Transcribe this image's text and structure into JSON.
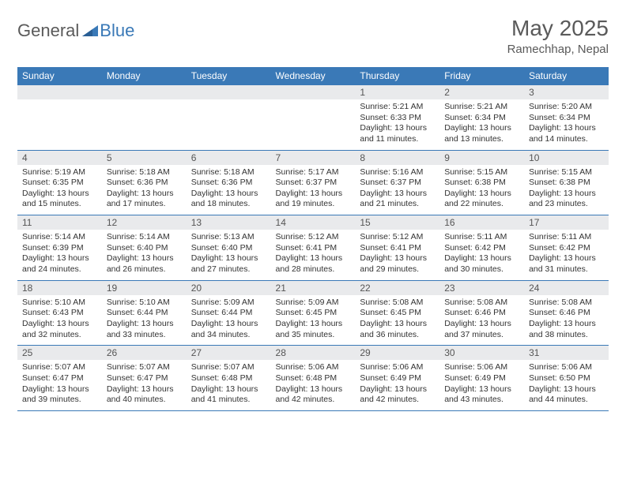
{
  "brand": {
    "word1": "General",
    "word2": "Blue"
  },
  "title": "May 2025",
  "location": "Ramechhap, Nepal",
  "colors": {
    "header_bg": "#3a79b7",
    "header_text": "#ffffff",
    "daynum_bg": "#e9eaec",
    "border": "#3a79b7",
    "page_bg": "#ffffff",
    "text": "#333333"
  },
  "weekdays": [
    "Sunday",
    "Monday",
    "Tuesday",
    "Wednesday",
    "Thursday",
    "Friday",
    "Saturday"
  ],
  "weeks": [
    [
      {
        "n": "",
        "sr": "",
        "ss": "",
        "dl": ""
      },
      {
        "n": "",
        "sr": "",
        "ss": "",
        "dl": ""
      },
      {
        "n": "",
        "sr": "",
        "ss": "",
        "dl": ""
      },
      {
        "n": "",
        "sr": "",
        "ss": "",
        "dl": ""
      },
      {
        "n": "1",
        "sr": "Sunrise: 5:21 AM",
        "ss": "Sunset: 6:33 PM",
        "dl": "Daylight: 13 hours and 11 minutes."
      },
      {
        "n": "2",
        "sr": "Sunrise: 5:21 AM",
        "ss": "Sunset: 6:34 PM",
        "dl": "Daylight: 13 hours and 13 minutes."
      },
      {
        "n": "3",
        "sr": "Sunrise: 5:20 AM",
        "ss": "Sunset: 6:34 PM",
        "dl": "Daylight: 13 hours and 14 minutes."
      }
    ],
    [
      {
        "n": "4",
        "sr": "Sunrise: 5:19 AM",
        "ss": "Sunset: 6:35 PM",
        "dl": "Daylight: 13 hours and 15 minutes."
      },
      {
        "n": "5",
        "sr": "Sunrise: 5:18 AM",
        "ss": "Sunset: 6:36 PM",
        "dl": "Daylight: 13 hours and 17 minutes."
      },
      {
        "n": "6",
        "sr": "Sunrise: 5:18 AM",
        "ss": "Sunset: 6:36 PM",
        "dl": "Daylight: 13 hours and 18 minutes."
      },
      {
        "n": "7",
        "sr": "Sunrise: 5:17 AM",
        "ss": "Sunset: 6:37 PM",
        "dl": "Daylight: 13 hours and 19 minutes."
      },
      {
        "n": "8",
        "sr": "Sunrise: 5:16 AM",
        "ss": "Sunset: 6:37 PM",
        "dl": "Daylight: 13 hours and 21 minutes."
      },
      {
        "n": "9",
        "sr": "Sunrise: 5:15 AM",
        "ss": "Sunset: 6:38 PM",
        "dl": "Daylight: 13 hours and 22 minutes."
      },
      {
        "n": "10",
        "sr": "Sunrise: 5:15 AM",
        "ss": "Sunset: 6:38 PM",
        "dl": "Daylight: 13 hours and 23 minutes."
      }
    ],
    [
      {
        "n": "11",
        "sr": "Sunrise: 5:14 AM",
        "ss": "Sunset: 6:39 PM",
        "dl": "Daylight: 13 hours and 24 minutes."
      },
      {
        "n": "12",
        "sr": "Sunrise: 5:14 AM",
        "ss": "Sunset: 6:40 PM",
        "dl": "Daylight: 13 hours and 26 minutes."
      },
      {
        "n": "13",
        "sr": "Sunrise: 5:13 AM",
        "ss": "Sunset: 6:40 PM",
        "dl": "Daylight: 13 hours and 27 minutes."
      },
      {
        "n": "14",
        "sr": "Sunrise: 5:12 AM",
        "ss": "Sunset: 6:41 PM",
        "dl": "Daylight: 13 hours and 28 minutes."
      },
      {
        "n": "15",
        "sr": "Sunrise: 5:12 AM",
        "ss": "Sunset: 6:41 PM",
        "dl": "Daylight: 13 hours and 29 minutes."
      },
      {
        "n": "16",
        "sr": "Sunrise: 5:11 AM",
        "ss": "Sunset: 6:42 PM",
        "dl": "Daylight: 13 hours and 30 minutes."
      },
      {
        "n": "17",
        "sr": "Sunrise: 5:11 AM",
        "ss": "Sunset: 6:42 PM",
        "dl": "Daylight: 13 hours and 31 minutes."
      }
    ],
    [
      {
        "n": "18",
        "sr": "Sunrise: 5:10 AM",
        "ss": "Sunset: 6:43 PM",
        "dl": "Daylight: 13 hours and 32 minutes."
      },
      {
        "n": "19",
        "sr": "Sunrise: 5:10 AM",
        "ss": "Sunset: 6:44 PM",
        "dl": "Daylight: 13 hours and 33 minutes."
      },
      {
        "n": "20",
        "sr": "Sunrise: 5:09 AM",
        "ss": "Sunset: 6:44 PM",
        "dl": "Daylight: 13 hours and 34 minutes."
      },
      {
        "n": "21",
        "sr": "Sunrise: 5:09 AM",
        "ss": "Sunset: 6:45 PM",
        "dl": "Daylight: 13 hours and 35 minutes."
      },
      {
        "n": "22",
        "sr": "Sunrise: 5:08 AM",
        "ss": "Sunset: 6:45 PM",
        "dl": "Daylight: 13 hours and 36 minutes."
      },
      {
        "n": "23",
        "sr": "Sunrise: 5:08 AM",
        "ss": "Sunset: 6:46 PM",
        "dl": "Daylight: 13 hours and 37 minutes."
      },
      {
        "n": "24",
        "sr": "Sunrise: 5:08 AM",
        "ss": "Sunset: 6:46 PM",
        "dl": "Daylight: 13 hours and 38 minutes."
      }
    ],
    [
      {
        "n": "25",
        "sr": "Sunrise: 5:07 AM",
        "ss": "Sunset: 6:47 PM",
        "dl": "Daylight: 13 hours and 39 minutes."
      },
      {
        "n": "26",
        "sr": "Sunrise: 5:07 AM",
        "ss": "Sunset: 6:47 PM",
        "dl": "Daylight: 13 hours and 40 minutes."
      },
      {
        "n": "27",
        "sr": "Sunrise: 5:07 AM",
        "ss": "Sunset: 6:48 PM",
        "dl": "Daylight: 13 hours and 41 minutes."
      },
      {
        "n": "28",
        "sr": "Sunrise: 5:06 AM",
        "ss": "Sunset: 6:48 PM",
        "dl": "Daylight: 13 hours and 42 minutes."
      },
      {
        "n": "29",
        "sr": "Sunrise: 5:06 AM",
        "ss": "Sunset: 6:49 PM",
        "dl": "Daylight: 13 hours and 42 minutes."
      },
      {
        "n": "30",
        "sr": "Sunrise: 5:06 AM",
        "ss": "Sunset: 6:49 PM",
        "dl": "Daylight: 13 hours and 43 minutes."
      },
      {
        "n": "31",
        "sr": "Sunrise: 5:06 AM",
        "ss": "Sunset: 6:50 PM",
        "dl": "Daylight: 13 hours and 44 minutes."
      }
    ]
  ]
}
